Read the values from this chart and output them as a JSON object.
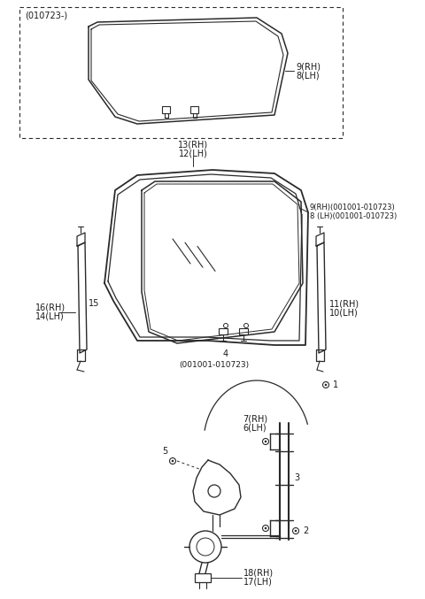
{
  "bg_color": "#ffffff",
  "line_color": "#2a2a2a",
  "text_color": "#1a1a1a",
  "fig_width": 4.8,
  "fig_height": 6.77,
  "dpi": 100,
  "labels": {
    "top_box_label": "(010723-)",
    "part_9_rh": "9(RH)",
    "part_8_lh": "8(LH)",
    "part_13_rh": "13(RH)",
    "part_12_lh": "12(LH)",
    "part_9_rh_range": "9(RH)(001001-010723)",
    "part_8_lh_range": "8 (LH)(001001-010723)",
    "part_16_rh": "16(RH)",
    "part_14_lh": "14(LH)",
    "part_15": "15",
    "part_11_rh": "11(RH)",
    "part_10_lh": "10(LH)",
    "part_4": "4",
    "part_4_range": "(001001-010723)",
    "part_1": "1",
    "part_7_rh": "7(RH)",
    "part_6_lh": "6(LH)",
    "part_5": "5",
    "part_3": "3",
    "part_2": "2",
    "part_18_rh": "18(RH)",
    "part_17_lh": "17(LH)"
  }
}
